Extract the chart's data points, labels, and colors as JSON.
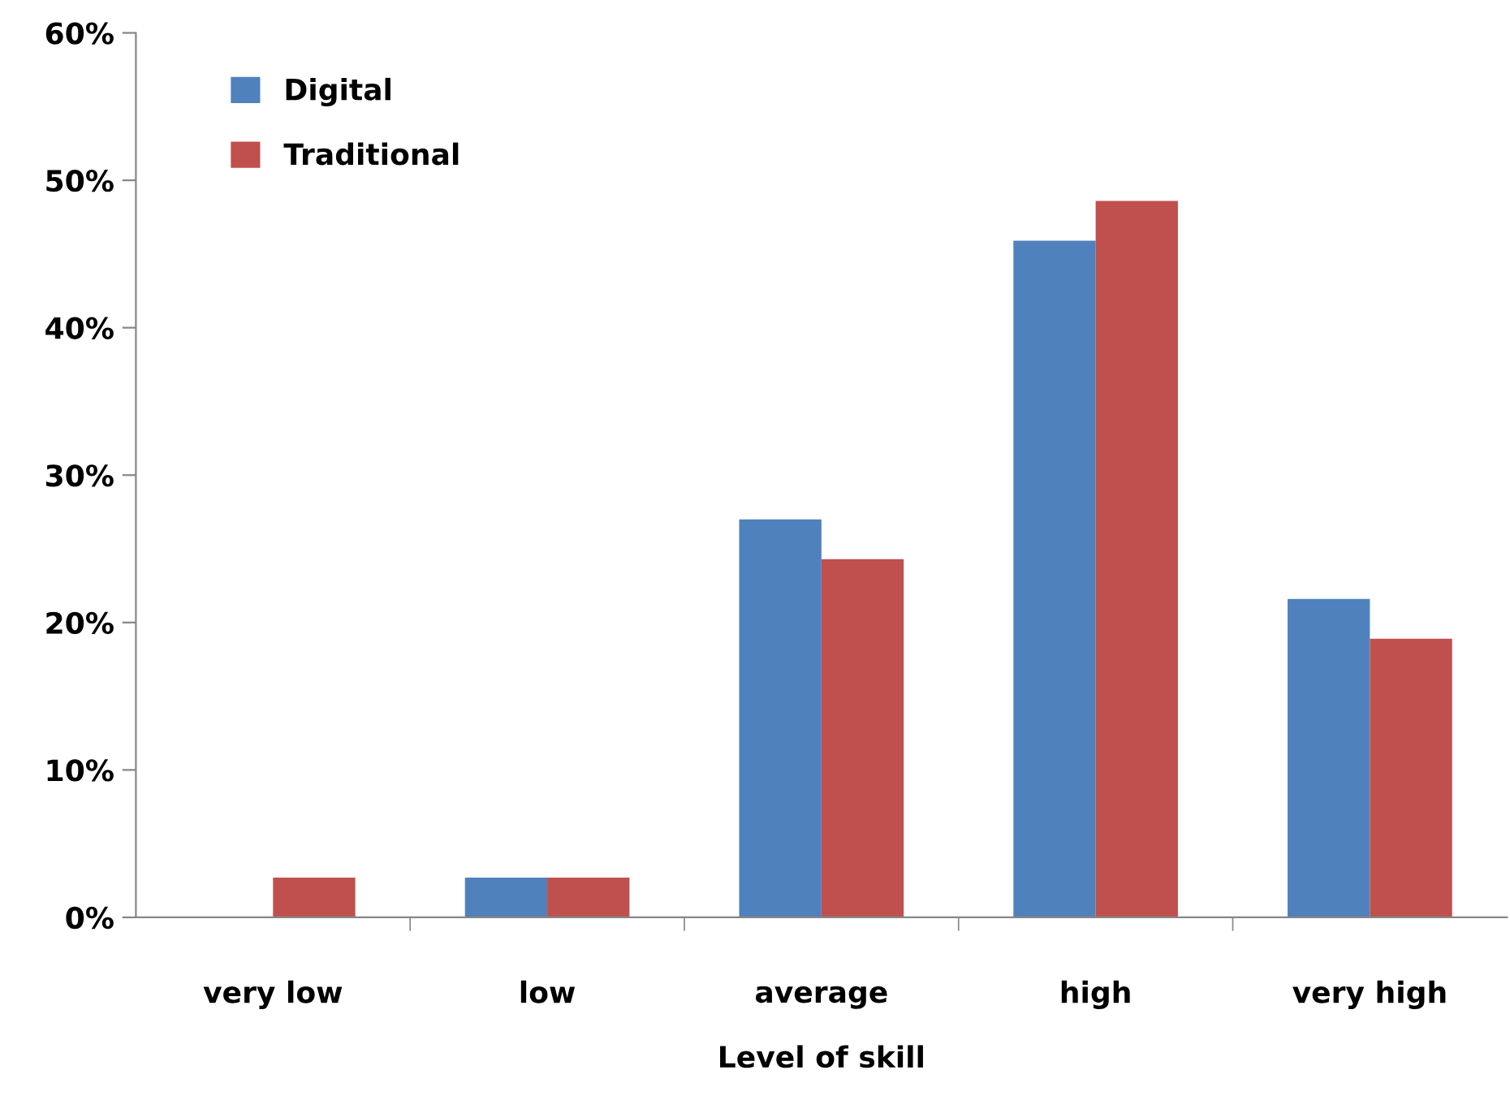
{
  "chart_data": {
    "type": "bar",
    "xlabel": "Level of skill",
    "categories": [
      "very low",
      "low",
      "average",
      "high",
      "very high"
    ],
    "series": [
      {
        "name": "Digital",
        "color": "#4f81bd",
        "values": [
          0,
          2.7,
          27.0,
          45.9,
          21.6
        ]
      },
      {
        "name": "Traditional",
        "color": "#c0504d",
        "values": [
          2.7,
          2.7,
          24.3,
          48.6,
          18.9
        ]
      }
    ],
    "ylim": [
      0,
      60
    ],
    "yticks": [
      {
        "value": 0,
        "label": "0%"
      },
      {
        "value": 10,
        "label": "10%"
      },
      {
        "value": 20,
        "label": "20%"
      },
      {
        "value": 30,
        "label": "30%"
      },
      {
        "value": 40,
        "label": "40%"
      },
      {
        "value": 50,
        "label": "50%"
      },
      {
        "value": 60,
        "label": "60%"
      }
    ],
    "grid": false,
    "legend": "top left"
  }
}
